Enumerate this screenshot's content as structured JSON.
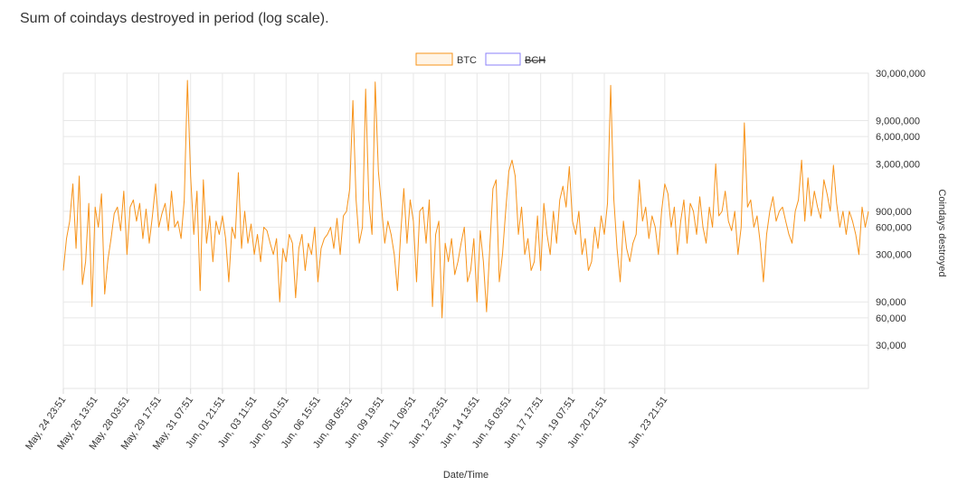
{
  "title": "Sum of coindays destroyed in period (log scale).",
  "chart_data": {
    "type": "line",
    "title": "Sum of coindays destroyed in period (log scale).",
    "xlabel": "Date/Time",
    "ylabel": "Coindays destroyed",
    "yscale": "log",
    "ylim": [
      10000,
      30000000
    ],
    "ytick_values": [
      30000,
      60000,
      90000,
      300000,
      600000,
      900000,
      3000000,
      6000000,
      9000000,
      30000000
    ],
    "ytick_labels": [
      "30,000",
      "60,000",
      "90,000",
      "300,000",
      "600,000",
      "900,000",
      "3,000,000",
      "6,000,000",
      "9,000,000",
      "30,000,000"
    ],
    "xtick_labels": [
      "May, 24 23:51",
      "May, 26 13:51",
      "May, 28 03:51",
      "May, 29 17:51",
      "May, 31 07:51",
      "Jun, 01 21:51",
      "Jun, 03 11:51",
      "Jun, 05 01:51",
      "Jun, 06 15:51",
      "Jun, 08 05:51",
      "Jun, 09 19:51",
      "Jun, 11 09:51",
      "Jun, 12 23:51",
      "Jun, 14 13:51",
      "Jun, 16 03:51",
      "Jun, 17 17:51",
      "Jun, 19 07:51",
      "Jun, 20 21:51",
      "Jun, 23 21:51"
    ],
    "xtick_index": [
      0,
      10,
      20,
      30,
      40,
      50,
      60,
      70,
      80,
      90,
      100,
      110,
      120,
      130,
      140,
      150,
      160,
      170,
      189
    ],
    "legend": [
      {
        "name": "BTC",
        "color": "#f7931a",
        "hidden": false
      },
      {
        "name": "BCH",
        "color": "#8b80f9",
        "hidden": true
      }
    ],
    "legend_position": "top-center",
    "series": [
      {
        "name": "BTC",
        "color": "#f7931a",
        "values": [
          200000,
          450000,
          700000,
          1800000,
          350000,
          2200000,
          140000,
          250000,
          1100000,
          80000,
          1000000,
          600000,
          1400000,
          110000,
          260000,
          450000,
          850000,
          1000000,
          550000,
          1500000,
          300000,
          1000000,
          1200000,
          700000,
          1100000,
          450000,
          950000,
          400000,
          800000,
          1800000,
          600000,
          850000,
          1100000,
          550000,
          1500000,
          600000,
          700000,
          450000,
          1200000,
          25000000,
          2200000,
          500000,
          1500000,
          120000,
          2000000,
          400000,
          800000,
          250000,
          700000,
          500000,
          800000,
          450000,
          150000,
          600000,
          450000,
          2400000,
          350000,
          900000,
          400000,
          650000,
          300000,
          500000,
          250000,
          600000,
          550000,
          400000,
          300000,
          450000,
          90000,
          350000,
          250000,
          500000,
          400000,
          100000,
          350000,
          500000,
          200000,
          400000,
          300000,
          600000,
          150000,
          350000,
          450000,
          500000,
          600000,
          350000,
          750000,
          300000,
          800000,
          900000,
          1600000,
          15000000,
          1200000,
          400000,
          600000,
          20000000,
          1200000,
          500000,
          24000000,
          2500000,
          1000000,
          400000,
          700000,
          500000,
          300000,
          120000,
          500000,
          1600000,
          400000,
          1200000,
          700000,
          150000,
          900000,
          1000000,
          400000,
          1200000,
          80000,
          500000,
          700000,
          60000,
          400000,
          250000,
          450000,
          180000,
          250000,
          400000,
          600000,
          150000,
          200000,
          450000,
          90000,
          550000,
          250000,
          70000,
          350000,
          1600000,
          2000000,
          150000,
          300000,
          900000,
          2500000,
          3300000,
          2200000,
          500000,
          1000000,
          300000,
          450000,
          200000,
          250000,
          800000,
          200000,
          1100000,
          500000,
          300000,
          900000,
          400000,
          1200000,
          1700000,
          1000000,
          2800000,
          700000,
          500000,
          900000,
          300000,
          450000,
          200000,
          250000,
          600000,
          350000,
          800000,
          500000,
          1100000,
          22000000,
          1200000,
          350000,
          150000,
          700000,
          350000,
          250000,
          400000,
          500000,
          2000000,
          700000,
          1000000,
          450000,
          800000,
          600000,
          300000,
          900000,
          1800000,
          1400000,
          600000,
          1000000,
          300000,
          700000,
          1200000,
          400000,
          1100000,
          900000,
          500000,
          1300000,
          600000,
          400000,
          1000000,
          600000,
          3000000,
          800000,
          900000,
          1500000,
          700000,
          550000,
          900000,
          300000,
          600000,
          8500000,
          1000000,
          1200000,
          600000,
          800000,
          400000,
          150000,
          500000,
          900000,
          1300000,
          700000,
          900000,
          1000000,
          700000,
          500000,
          400000,
          900000,
          1200000,
          3300000,
          700000,
          2100000,
          800000,
          1500000,
          1000000,
          750000,
          2000000,
          1400000,
          900000,
          2900000,
          1100000,
          600000,
          900000,
          500000,
          900000,
          700000,
          500000,
          300000,
          1000000,
          600000,
          900000
        ]
      }
    ]
  }
}
